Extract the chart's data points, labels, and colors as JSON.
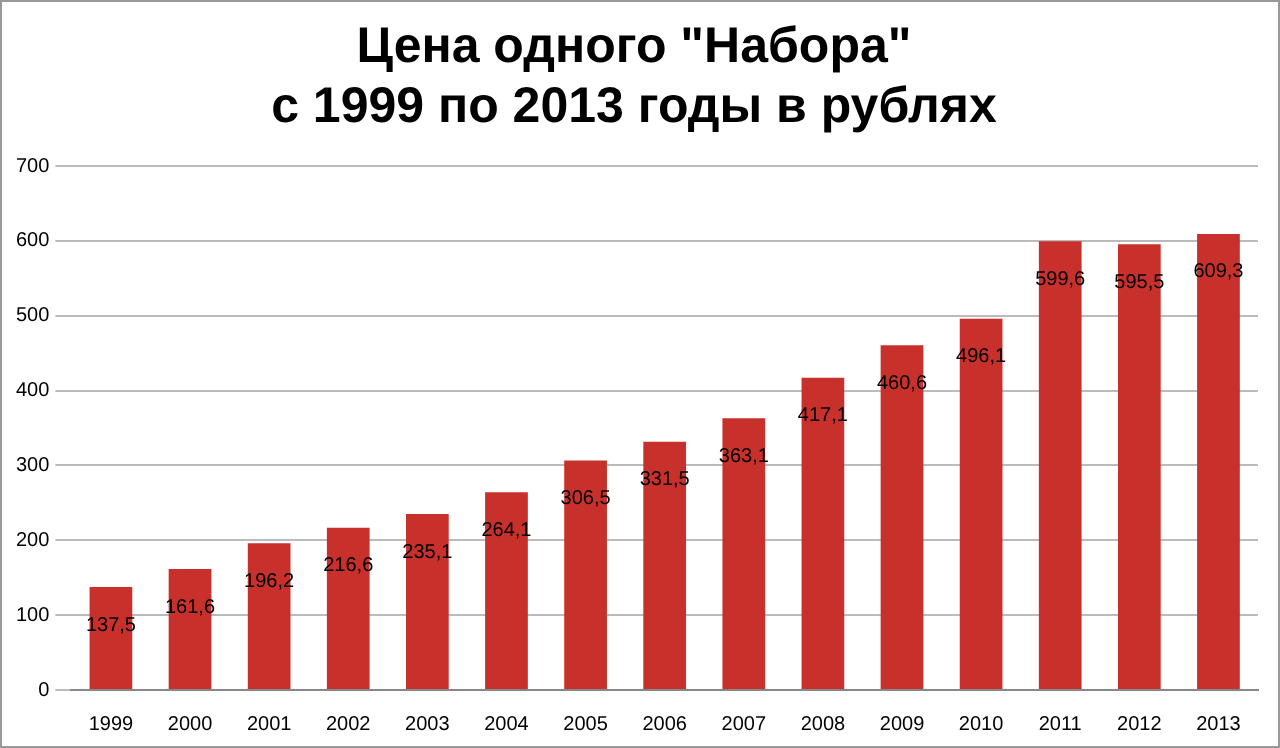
{
  "chart_data": {
    "type": "bar",
    "title": "Цена одного \"Набора\"\nс 1999 по 2013 годы в рублях",
    "categories": [
      "1999",
      "2000",
      "2001",
      "2002",
      "2003",
      "2004",
      "2005",
      "2006",
      "2007",
      "2008",
      "2009",
      "2010",
      "2011",
      "2012",
      "2013"
    ],
    "values": [
      137.5,
      161.6,
      196.2,
      216.6,
      235.1,
      264.1,
      306.5,
      331.5,
      363.1,
      417.1,
      460.6,
      496.1,
      599.6,
      595.5,
      609.3
    ],
    "value_labels": [
      "137,5",
      "161,6",
      "196,2",
      "216,6",
      "235,1",
      "264,1",
      "306,5",
      "331,5",
      "363,1",
      "417,1",
      "460,6",
      "496,1",
      "599,6",
      "595,5",
      "609,3"
    ],
    "color": "#c8302c",
    "ylim": [
      0,
      700
    ],
    "yticks": [
      0,
      100,
      200,
      300,
      400,
      500,
      600,
      700
    ],
    "grid": "y",
    "legend": false
  }
}
